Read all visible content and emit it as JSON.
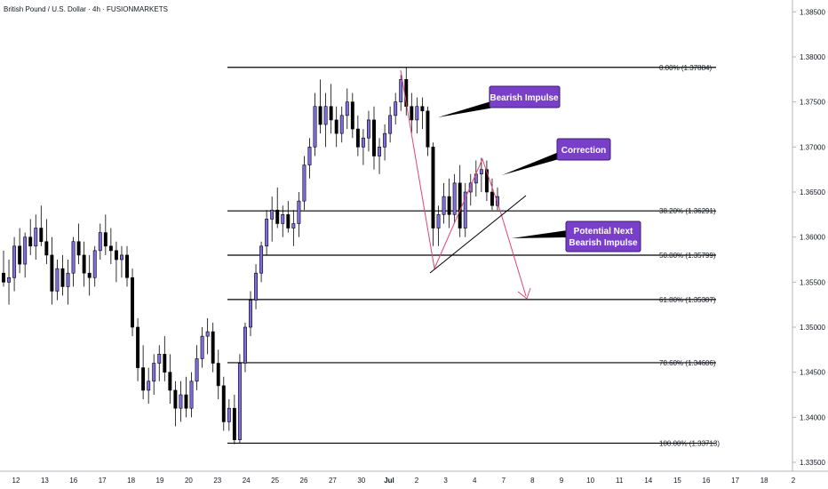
{
  "chart_data": {
    "type": "candlestick",
    "title": "British Pound / U.S. Dollar · 4h · FUSIONMARKETS",
    "y_axis": {
      "position": "right",
      "range": [
        1.333,
        1.387
      ],
      "ticks": [
        "1.38500",
        "1.38000",
        "1.37500",
        "1.37000",
        "1.36500",
        "1.36000",
        "1.35500",
        "1.35000",
        "1.34500",
        "1.34000",
        "1.33500"
      ]
    },
    "x_axis": {
      "ticks": [
        "12",
        "13",
        "16",
        "17",
        "18",
        "19",
        "20",
        "23",
        "24",
        "25",
        "26",
        "27",
        "30",
        "Jul",
        "2",
        "3",
        "4",
        "7",
        "8",
        "9",
        "10",
        "11",
        "14",
        "15",
        "16",
        "17",
        "18",
        "2"
      ]
    },
    "colors": {
      "up": "#7e6fe0",
      "down": "#000000",
      "fib_line": "#000000",
      "impulse": "#e0456e",
      "callout": "#7a3fc8"
    },
    "fib_levels": [
      {
        "label": "0.00% (1.37884)",
        "price": 1.37884
      },
      {
        "label": "38.20% (1.36291)",
        "price": 1.36291
      },
      {
        "label": "50.00% (1.35799)",
        "price": 1.35799
      },
      {
        "label": "61.80% (1.35307)",
        "price": 1.35307
      },
      {
        "label": "78.60% (1.34606)",
        "price": 1.34606
      },
      {
        "label": "100.00% (1.33713)",
        "price": 1.33713
      }
    ],
    "callouts": [
      {
        "lines": [
          "Bearish Impulse"
        ]
      },
      {
        "lines": [
          "Correction"
        ]
      },
      {
        "lines": [
          "Potential Next",
          "Bearish Impulse"
        ]
      }
    ],
    "candles": [
      [
        1.356,
        1.3585,
        1.3545,
        1.355
      ],
      [
        1.355,
        1.3575,
        1.3525,
        1.3555
      ],
      [
        1.3555,
        1.36,
        1.354,
        1.359
      ],
      [
        1.359,
        1.361,
        1.356,
        1.357
      ],
      [
        1.357,
        1.3605,
        1.3555,
        1.36
      ],
      [
        1.36,
        1.362,
        1.358,
        1.359
      ],
      [
        1.359,
        1.3625,
        1.3575,
        1.361
      ],
      [
        1.361,
        1.3635,
        1.359,
        1.3595
      ],
      [
        1.3595,
        1.362,
        1.357,
        1.358
      ],
      [
        1.358,
        1.36,
        1.3525,
        1.354
      ],
      [
        1.354,
        1.3575,
        1.353,
        1.3565
      ],
      [
        1.3565,
        1.358,
        1.3535,
        1.3545
      ],
      [
        1.3545,
        1.3575,
        1.3525,
        1.356
      ],
      [
        1.356,
        1.36,
        1.3545,
        1.3595
      ],
      [
        1.3595,
        1.3615,
        1.357,
        1.358
      ],
      [
        1.358,
        1.3595,
        1.3545,
        1.356
      ],
      [
        1.356,
        1.358,
        1.3535,
        1.3555
      ],
      [
        1.3555,
        1.359,
        1.3545,
        1.3585
      ],
      [
        1.3585,
        1.3615,
        1.3575,
        1.3605
      ],
      [
        1.3605,
        1.3625,
        1.358,
        1.359
      ],
      [
        1.359,
        1.361,
        1.357,
        1.3585
      ],
      [
        1.3585,
        1.3595,
        1.355,
        1.3575
      ],
      [
        1.3575,
        1.359,
        1.3555,
        1.358
      ],
      [
        1.358,
        1.359,
        1.3545,
        1.3555
      ],
      [
        1.3555,
        1.3565,
        1.349,
        1.35
      ],
      [
        1.35,
        1.351,
        1.344,
        1.3455
      ],
      [
        1.3455,
        1.348,
        1.342,
        1.343
      ],
      [
        1.343,
        1.3455,
        1.3415,
        1.344
      ],
      [
        1.344,
        1.347,
        1.3425,
        1.346
      ],
      [
        1.346,
        1.348,
        1.344,
        1.347
      ],
      [
        1.347,
        1.349,
        1.344,
        1.345
      ],
      [
        1.345,
        1.347,
        1.3415,
        1.343
      ],
      [
        1.343,
        1.344,
        1.339,
        1.341
      ],
      [
        1.341,
        1.344,
        1.3395,
        1.3425
      ],
      [
        1.3425,
        1.3445,
        1.34,
        1.341
      ],
      [
        1.341,
        1.345,
        1.34,
        1.344
      ],
      [
        1.344,
        1.348,
        1.343,
        1.3465
      ],
      [
        1.3465,
        1.35,
        1.3455,
        1.349
      ],
      [
        1.349,
        1.351,
        1.347,
        1.3495
      ],
      [
        1.3495,
        1.3505,
        1.345,
        1.346
      ],
      [
        1.346,
        1.3475,
        1.342,
        1.3435
      ],
      [
        1.3435,
        1.3445,
        1.3385,
        1.3395
      ],
      [
        1.3395,
        1.342,
        1.3385,
        1.341
      ],
      [
        1.341,
        1.3425,
        1.337,
        1.3375
      ],
      [
        1.3375,
        1.347,
        1.3371,
        1.346
      ],
      [
        1.346,
        1.3505,
        1.345,
        1.35
      ],
      [
        1.35,
        1.354,
        1.349,
        1.353
      ],
      [
        1.353,
        1.357,
        1.352,
        1.356
      ],
      [
        1.356,
        1.3595,
        1.355,
        1.359
      ],
      [
        1.359,
        1.363,
        1.358,
        1.362
      ],
      [
        1.362,
        1.3645,
        1.3595,
        1.363
      ],
      [
        1.363,
        1.3655,
        1.361,
        1.3615
      ],
      [
        1.3615,
        1.3635,
        1.36,
        1.3625
      ],
      [
        1.3625,
        1.364,
        1.3605,
        1.361
      ],
      [
        1.361,
        1.363,
        1.359,
        1.3615
      ],
      [
        1.3615,
        1.365,
        1.36,
        1.364
      ],
      [
        1.364,
        1.369,
        1.363,
        1.368
      ],
      [
        1.368,
        1.371,
        1.3665,
        1.37
      ],
      [
        1.37,
        1.376,
        1.369,
        1.3745
      ],
      [
        1.3745,
        1.3775,
        1.3715,
        1.3725
      ],
      [
        1.3725,
        1.376,
        1.37,
        1.3745
      ],
      [
        1.3745,
        1.377,
        1.3715,
        1.373
      ],
      [
        1.373,
        1.3745,
        1.37,
        1.3715
      ],
      [
        1.3715,
        1.3745,
        1.3705,
        1.3735
      ],
      [
        1.3735,
        1.3765,
        1.372,
        1.375
      ],
      [
        1.375,
        1.376,
        1.371,
        1.372
      ],
      [
        1.372,
        1.3735,
        1.369,
        1.37
      ],
      [
        1.37,
        1.372,
        1.368,
        1.371
      ],
      [
        1.371,
        1.374,
        1.3695,
        1.373
      ],
      [
        1.373,
        1.3745,
        1.3675,
        1.369
      ],
      [
        1.369,
        1.371,
        1.367,
        1.37
      ],
      [
        1.37,
        1.3725,
        1.3685,
        1.3715
      ],
      [
        1.3715,
        1.3745,
        1.3705,
        1.3735
      ],
      [
        1.3735,
        1.376,
        1.3725,
        1.375
      ],
      [
        1.375,
        1.378,
        1.374,
        1.3775
      ],
      [
        1.3775,
        1.3788,
        1.3735,
        1.3745
      ],
      [
        1.3745,
        1.376,
        1.3715,
        1.373
      ],
      [
        1.373,
        1.3755,
        1.3715,
        1.3745
      ],
      [
        1.3745,
        1.3755,
        1.372,
        1.374
      ],
      [
        1.374,
        1.3745,
        1.369,
        1.37
      ],
      [
        1.37,
        1.3705,
        1.359,
        1.361
      ],
      [
        1.361,
        1.3635,
        1.359,
        1.3625
      ],
      [
        1.3625,
        1.366,
        1.3615,
        1.3645
      ],
      [
        1.3645,
        1.3665,
        1.361,
        1.3625
      ],
      [
        1.3625,
        1.367,
        1.3615,
        1.366
      ],
      [
        1.366,
        1.368,
        1.36,
        1.361
      ],
      [
        1.361,
        1.366,
        1.36,
        1.365
      ],
      [
        1.365,
        1.367,
        1.3635,
        1.366
      ],
      [
        1.366,
        1.3685,
        1.3645,
        1.367
      ],
      [
        1.367,
        1.3688,
        1.365,
        1.3675
      ],
      [
        1.3675,
        1.3685,
        1.364,
        1.365
      ],
      [
        1.365,
        1.3665,
        1.363,
        1.3635
      ],
      [
        1.3635,
        1.3655,
        1.363,
        1.3645
      ]
    ]
  }
}
